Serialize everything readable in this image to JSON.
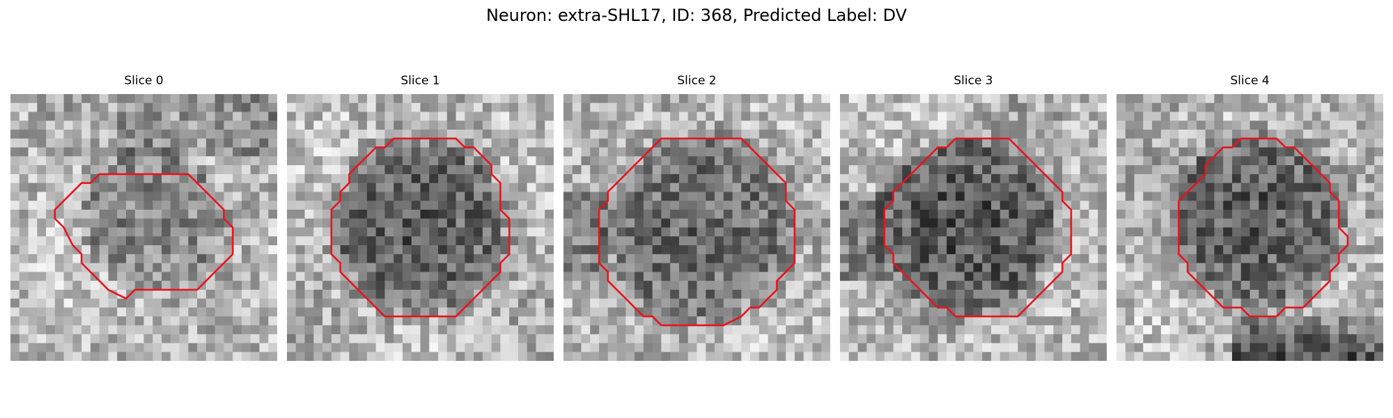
{
  "figure": {
    "title": "Neuron: extra-SHL17, ID: 368, Predicted Label: DV"
  },
  "image_style": {
    "colormap": "grayscale",
    "grid": "30x30 pixel noise",
    "outline_color": "#e8141e"
  },
  "slices": [
    {
      "label": "Slice 0"
    },
    {
      "label": "Slice 1"
    },
    {
      "label": "Slice 2"
    },
    {
      "label": "Slice 3"
    },
    {
      "label": "Slice 4"
    }
  ]
}
